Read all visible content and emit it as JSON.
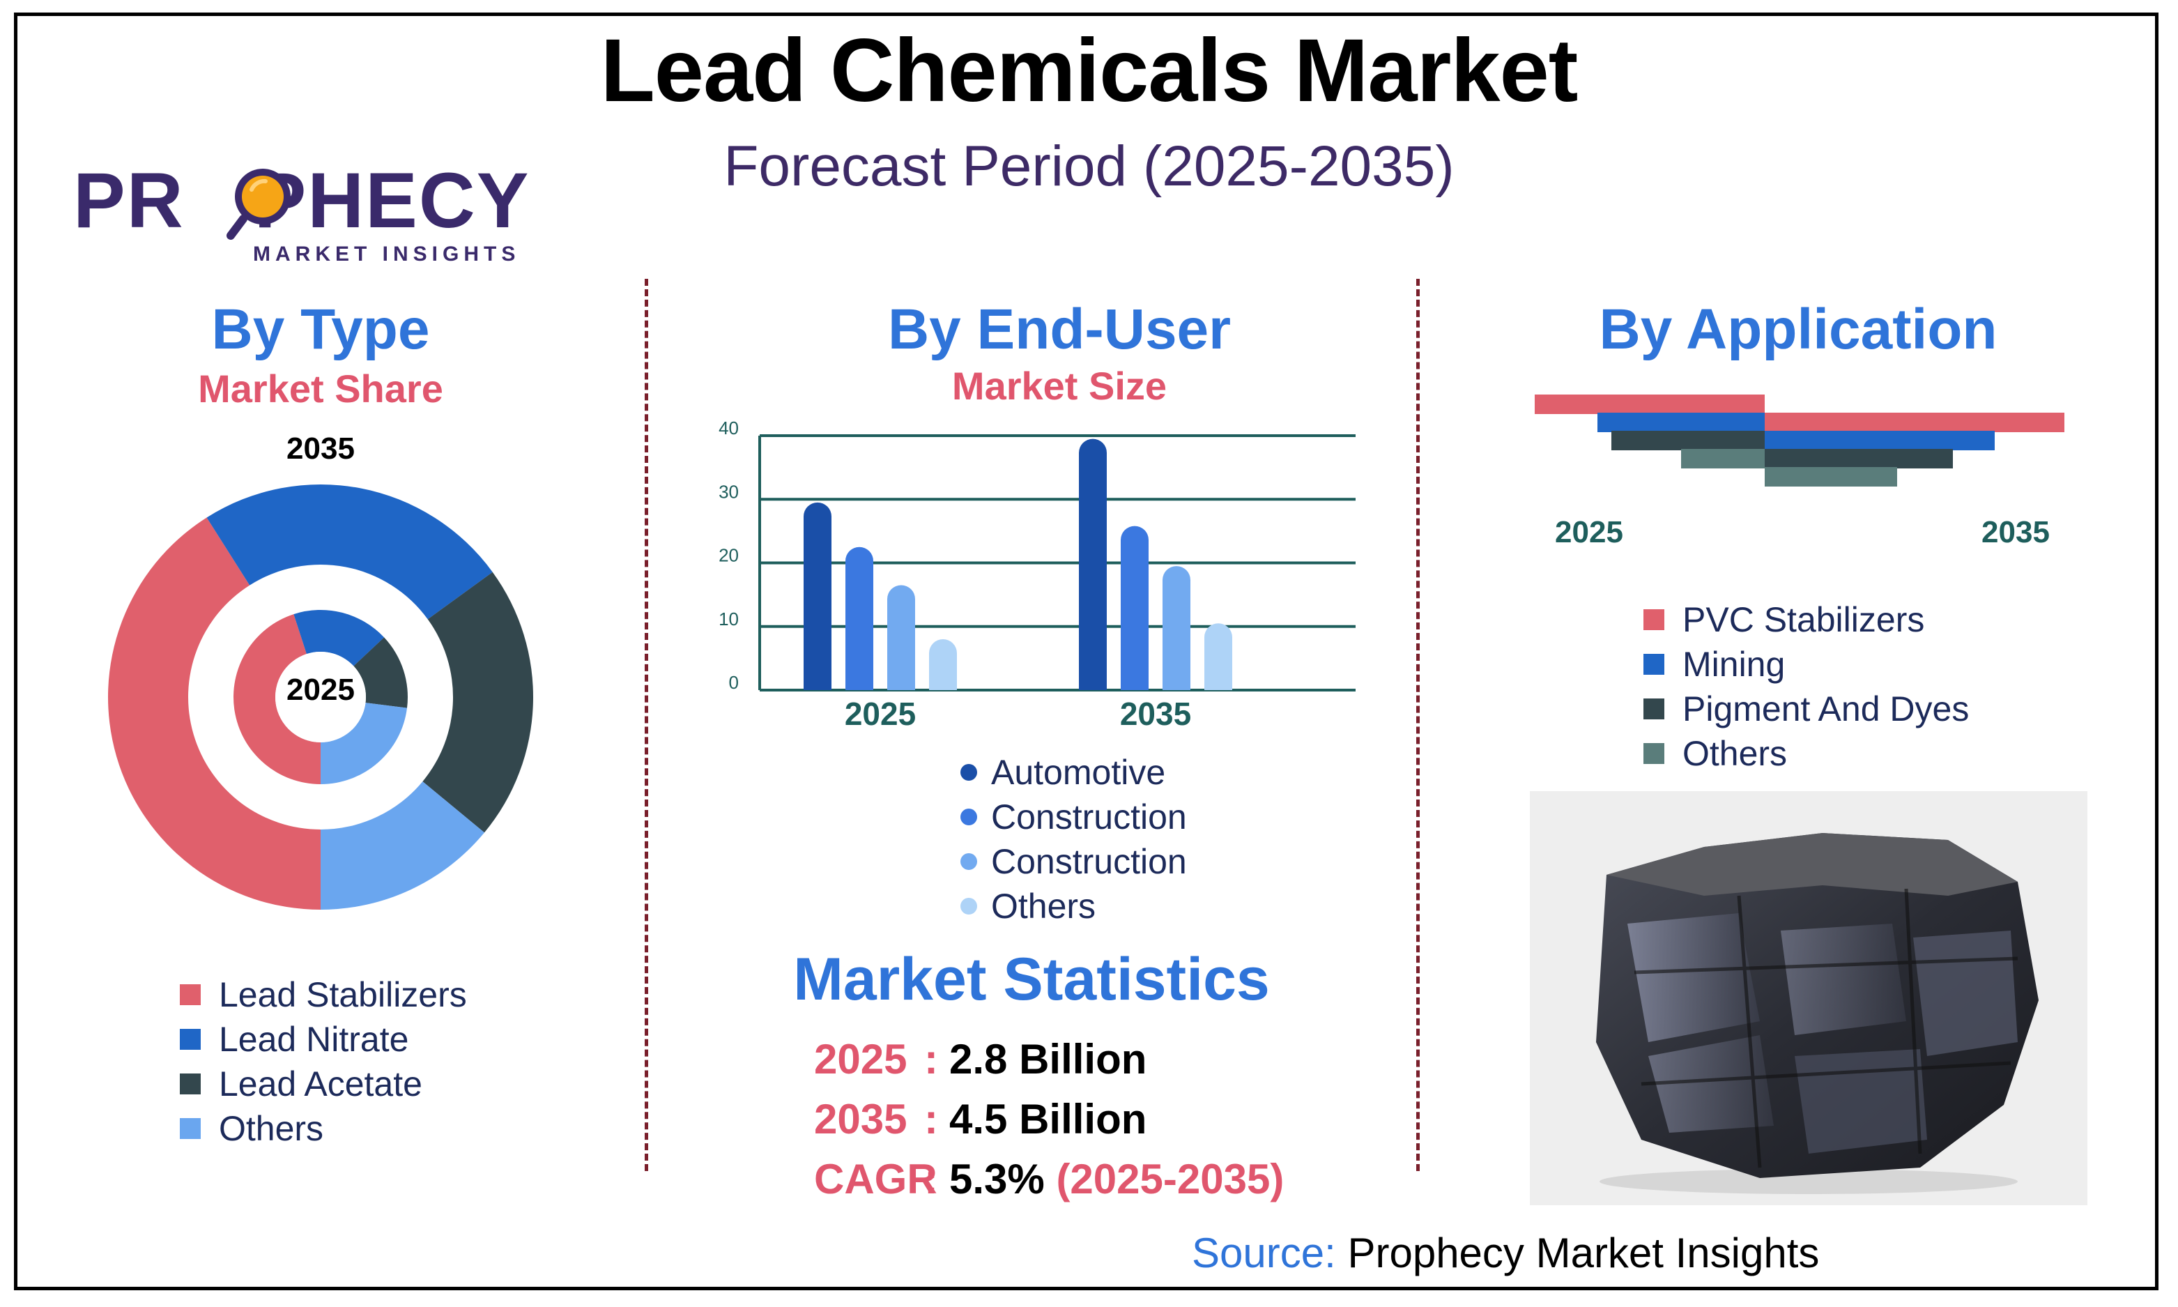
{
  "header": {
    "title": "Lead Chemicals Market",
    "subtitle": "Forecast Period (2025-2035)"
  },
  "logo": {
    "word_left": "PR",
    "word_right": "PHECY",
    "tagline": "MARKET INSIGHTS",
    "icon": "magnifier-icon"
  },
  "colors": {
    "accent_blue": "#2f74d9",
    "accent_red": "#e0566d",
    "title_purple": "#3d2a66"
  },
  "type_panel": {
    "title": "By Type",
    "subtitle": "Market Share",
    "outer_year": "2035",
    "inner_year": "2025",
    "legend": [
      {
        "label": "Lead Stabilizers",
        "color": "#e0606c"
      },
      {
        "label": "Lead Nitrate",
        "color": "#1f66c6"
      },
      {
        "label": "Lead Acetate",
        "color": "#33474d"
      },
      {
        "label": "Others",
        "color": "#6aa6ef"
      }
    ]
  },
  "end_user_panel": {
    "title": "By End-User",
    "subtitle": "Market Size",
    "legend": [
      {
        "label": "Automotive",
        "color": "#1a4fa8"
      },
      {
        "label": "Construction",
        "color": "#3b78e0"
      },
      {
        "label": "Construction",
        "color": "#72aaf0"
      },
      {
        "label": "Others",
        "color": "#aed3f7"
      }
    ]
  },
  "application_panel": {
    "title": "By Application",
    "year_left": "2025",
    "year_right": "2035",
    "legend": [
      {
        "label": "PVC Stabilizers",
        "color": "#e0606c"
      },
      {
        "label": "Mining",
        "color": "#1f66c6"
      },
      {
        "label": "Pigment And Dyes",
        "color": "#33474d"
      },
      {
        "label": "Others",
        "color": "#5a7d7b"
      }
    ]
  },
  "statistics": {
    "title": "Market Statistics",
    "rows": [
      {
        "key": "2025",
        "colon": ":",
        "value": "2.8 Billion",
        "extra": ""
      },
      {
        "key": "2035",
        "colon": ":",
        "value": "4.5 Billion",
        "extra": ""
      },
      {
        "key": "CAGR",
        "colon": ":",
        "value": "5.3% ",
        "extra": "(2025-2035)"
      }
    ]
  },
  "source": {
    "label": "Source:",
    "value": "Prophecy Market Insights"
  },
  "photo": {
    "subject": "lead-ore-rock-image"
  },
  "chart_data": [
    {
      "type": "pie",
      "variant": "nested-donut",
      "title": "By Type",
      "subtitle": "Market Share",
      "categories": [
        "Lead Stabilizers",
        "Lead Nitrate",
        "Lead Acetate",
        "Others"
      ],
      "series": [
        {
          "name": "2035",
          "values": [
            41,
            24,
            21,
            14
          ]
        },
        {
          "name": "2025",
          "values": [
            45,
            18,
            14,
            23
          ]
        }
      ]
    },
    {
      "type": "bar",
      "title": "By End-User",
      "subtitle": "Market Size",
      "categories": [
        "2025",
        "2035"
      ],
      "series": [
        {
          "name": "Automotive",
          "values": [
            29.5,
            39.5
          ]
        },
        {
          "name": "Construction",
          "values": [
            22.5,
            25.8
          ]
        },
        {
          "name": "Construction",
          "values": [
            16.5,
            19.5
          ]
        },
        {
          "name": "Others",
          "values": [
            8,
            10.5
          ]
        }
      ],
      "ylim": [
        0,
        40
      ],
      "yticks": [
        "0",
        "10",
        "20",
        "30",
        "40"
      ],
      "grid": true
    },
    {
      "type": "bar",
      "variant": "butterfly",
      "title": "By Application",
      "categories": [
        "PVC Stabilizers",
        "Mining",
        "Pigment And Dyes",
        "Others"
      ],
      "series": [
        {
          "name": "2025",
          "values": [
            33,
            24,
            22,
            12
          ]
        },
        {
          "name": "2035",
          "values": [
            43,
            33,
            27,
            19
          ]
        }
      ]
    }
  ]
}
